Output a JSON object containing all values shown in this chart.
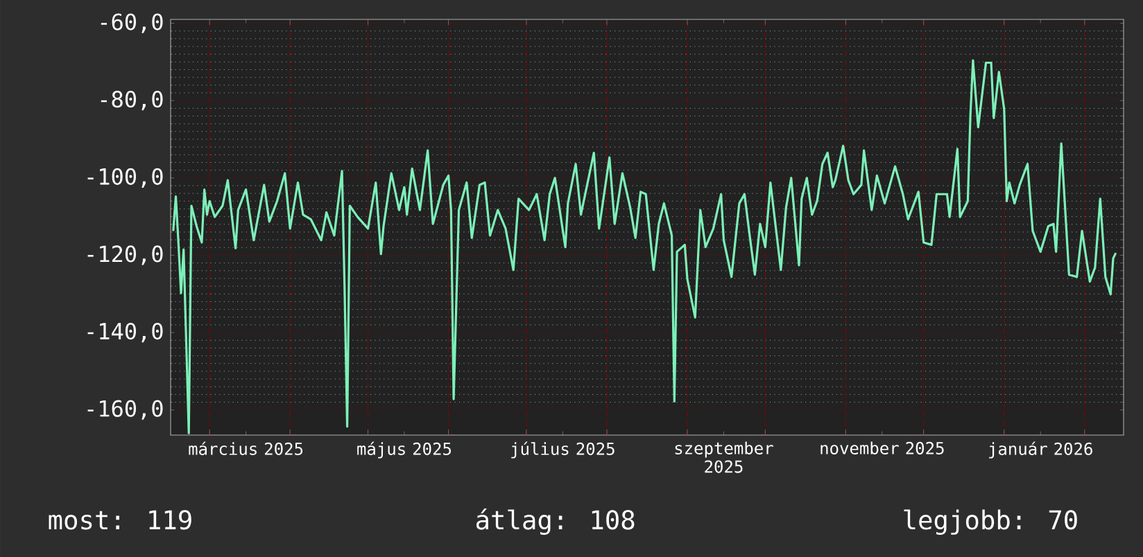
{
  "chart_data": {
    "type": "line",
    "color": "#7cf0b8",
    "x": [
      "2025-02-15",
      "2025-02-16",
      "2025-02-17",
      "2025-02-18",
      "2025-02-19",
      "2025-02-21",
      "2025-02-22",
      "2025-02-24",
      "2025-02-26",
      "2025-02-27",
      "2025-02-28",
      "2025-03-01",
      "2025-03-03",
      "2025-03-06",
      "2025-03-08",
      "2025-03-11",
      "2025-03-12",
      "2025-03-15",
      "2025-03-18",
      "2025-03-22",
      "2025-03-24",
      "2025-03-27",
      "2025-03-30",
      "2025-04-01",
      "2025-04-04",
      "2025-04-06",
      "2025-04-09",
      "2025-04-13",
      "2025-04-15",
      "2025-04-18",
      "2025-04-21",
      "2025-04-22",
      "2025-04-23",
      "2025-04-24",
      "2025-04-27",
      "2025-05-01",
      "2025-05-04",
      "2025-05-06",
      "2025-05-07",
      "2025-05-10",
      "2025-05-13",
      "2025-05-15",
      "2025-05-16",
      "2025-05-18",
      "2025-05-21",
      "2025-05-24",
      "2025-05-26",
      "2025-05-30",
      "2025-06-01",
      "2025-06-02",
      "2025-06-03",
      "2025-06-05",
      "2025-06-08",
      "2025-06-10",
      "2025-06-13",
      "2025-06-15",
      "2025-06-17",
      "2025-06-20",
      "2025-06-23",
      "2025-06-26",
      "2025-06-28",
      "2025-07-02",
      "2025-07-05",
      "2025-07-08",
      "2025-07-10",
      "2025-07-12",
      "2025-07-16",
      "2025-07-17",
      "2025-07-20",
      "2025-07-22",
      "2025-07-27",
      "2025-07-29",
      "2025-08-02",
      "2025-08-04",
      "2025-08-07",
      "2025-08-10",
      "2025-08-12",
      "2025-08-14",
      "2025-08-16",
      "2025-08-19",
      "2025-08-21",
      "2025-08-23",
      "2025-08-26",
      "2025-08-27",
      "2025-08-28",
      "2025-08-31",
      "2025-09-01",
      "2025-09-04",
      "2025-09-06",
      "2025-09-08",
      "2025-09-11",
      "2025-09-14",
      "2025-09-15",
      "2025-09-18",
      "2025-09-21",
      "2025-09-23",
      "2025-09-25",
      "2025-09-27",
      "2025-09-29",
      "2025-10-01",
      "2025-10-03",
      "2025-10-07",
      "2025-10-09",
      "2025-10-11",
      "2025-10-14",
      "2025-10-15",
      "2025-10-17",
      "2025-10-19",
      "2025-10-21",
      "2025-10-23",
      "2025-10-25",
      "2025-10-27",
      "2025-10-28",
      "2025-10-31",
      "2025-11-02",
      "2025-11-04",
      "2025-11-07",
      "2025-11-08",
      "2025-11-11",
      "2025-11-13",
      "2025-11-16",
      "2025-11-20",
      "2025-11-23",
      "2025-11-25",
      "2025-11-29",
      "2025-12-01",
      "2025-12-04",
      "2025-12-06",
      "2025-12-10",
      "2025-12-11",
      "2025-12-14",
      "2025-12-15",
      "2025-12-18",
      "2025-12-19",
      "2025-12-20",
      "2025-12-22",
      "2025-12-25",
      "2025-12-27",
      "2025-12-28",
      "2025-12-30",
      "2026-01-01",
      "2026-01-02",
      "2026-01-03",
      "2026-01-05",
      "2026-01-07",
      "2026-01-10",
      "2026-01-12",
      "2026-01-15",
      "2026-01-18",
      "2026-01-20",
      "2026-01-21",
      "2026-01-23",
      "2026-01-26",
      "2026-01-29",
      "2026-01-31",
      "2026-02-03",
      "2026-02-05",
      "2026-02-07",
      "2026-02-09",
      "2026-02-11",
      "2026-02-12",
      "2026-02-13"
    ],
    "values": [
      -113.7,
      -104.8,
      -116.7,
      -129.8,
      -118.5,
      -166,
      -107.2,
      -112.5,
      -116.7,
      -103,
      -109.5,
      -106,
      -110.1,
      -107.2,
      -100.6,
      -118.2,
      -108.3,
      -103,
      -116.1,
      -101.8,
      -111.3,
      -106,
      -98.8,
      -113.1,
      -101.2,
      -109.5,
      -110.7,
      -116.1,
      -108.9,
      -114.9,
      -98.2,
      -128.6,
      -164.3,
      -107.2,
      -110.1,
      -113.1,
      -101.2,
      -119.7,
      -112.5,
      -98.8,
      -108.3,
      -102.4,
      -109.5,
      -97.6,
      -108.3,
      -92.9,
      -111.9,
      -101.8,
      -99.4,
      -108.3,
      -157.2,
      -108.3,
      -101.2,
      -115.5,
      -101.8,
      -101.2,
      -114.9,
      -108.3,
      -113.1,
      -123.8,
      -105.4,
      -108.3,
      -104.2,
      -116.1,
      -104.2,
      -100,
      -117.9,
      -106.6,
      -96.4,
      -109.5,
      -93.5,
      -113.1,
      -94.7,
      -111.9,
      -98.8,
      -107.7,
      -115.5,
      -103.6,
      -104.2,
      -123.8,
      -111.9,
      -106.6,
      -114.9,
      -157.8,
      -119.1,
      -117.3,
      -126.2,
      -136.1,
      -108.3,
      -117.9,
      -113.1,
      -104.2,
      -116.1,
      -125.6,
      -106.6,
      -104.2,
      -114.9,
      -125,
      -111.9,
      -117.9,
      -101.2,
      -123.8,
      -107.7,
      -100,
      -122.6,
      -105.4,
      -100,
      -109.5,
      -105.9,
      -96.4,
      -93.5,
      -102.4,
      -100.6,
      -91.7,
      -100.6,
      -104.2,
      -101.8,
      -92.9,
      -108.3,
      -99.4,
      -106.6,
      -97,
      -104.2,
      -110.7,
      -103.6,
      -116.7,
      -117.3,
      -104.2,
      -104.2,
      -110.1,
      -92.5,
      -110.1,
      -106,
      -83.9,
      -69.6,
      -86.9,
      -70.2,
      -70.2,
      -84.5,
      -72.6,
      -82.2,
      -106,
      -101.2,
      -106.6,
      -101.8,
      -96.4,
      -113.7,
      -119.1,
      -112.5,
      -111.9,
      -119.1,
      -91.1,
      -125,
      -125.6,
      -113.7,
      -126.8,
      -123.2,
      -105.4,
      -125.6,
      -130.1,
      -120.8,
      -119.4
    ],
    "xlim": [
      "2025-02-14",
      "2026-02-16"
    ],
    "ylim": [
      -166.5,
      -59
    ],
    "yticks": [
      {
        "value": -60,
        "label": "-60,0"
      },
      {
        "value": -80,
        "label": "-80,0"
      },
      {
        "value": -100,
        "label": "-100,0"
      },
      {
        "value": -120,
        "label": "-120,0"
      },
      {
        "value": -140,
        "label": "-140,0"
      },
      {
        "value": -160,
        "label": "-160,0"
      }
    ],
    "xticks": [
      {
        "value": "2025-03-01",
        "label": null
      },
      {
        "value": "2025-03-15",
        "label": "március 2025"
      },
      {
        "value": "2025-04-01",
        "label": null
      },
      {
        "value": "2025-05-01",
        "label": null
      },
      {
        "value": "2025-05-15",
        "label": "május 2025"
      },
      {
        "value": "2025-06-01",
        "label": null
      },
      {
        "value": "2025-07-01",
        "label": null
      },
      {
        "value": "2025-07-15",
        "label": "július 2025"
      },
      {
        "value": "2025-08-01",
        "label": null
      },
      {
        "value": "2025-09-01",
        "label": null
      },
      {
        "value": "2025-09-15",
        "label": "szeptember 2025"
      },
      {
        "value": "2025-10-01",
        "label": null
      },
      {
        "value": "2025-11-01",
        "label": null
      },
      {
        "value": "2025-11-15",
        "label": "november 2025"
      },
      {
        "value": "2025-12-01",
        "label": null
      },
      {
        "value": "2026-01-01",
        "label": null
      },
      {
        "value": "2026-01-15",
        "label": "január 2026"
      },
      {
        "value": "2026-02-01",
        "label": null
      }
    ],
    "grid": true,
    "annotations": [
      "most: 119",
      "átlag: 108",
      "legjobb: 70"
    ]
  }
}
